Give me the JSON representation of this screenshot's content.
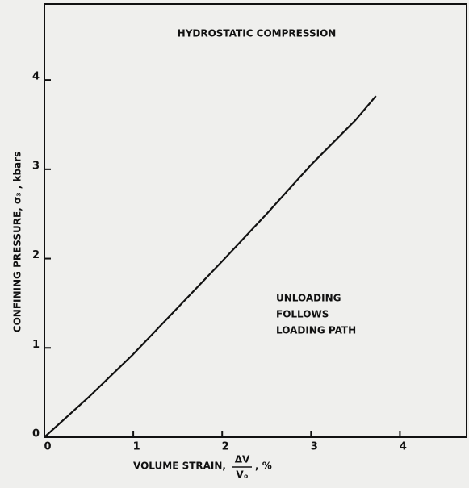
{
  "chart_data": {
    "type": "line",
    "title": "HYDROSTATIC COMPRESSION",
    "xlabel": {
      "text": "VOLUME STRAIN,",
      "numerator": "ΔV",
      "denominator": "Vₒ",
      "unit": ", %"
    },
    "ylabel": "CONFINING PRESSURE, σ₃ , kbars",
    "annotation": [
      "UNLOADING",
      "FOLLOWS",
      "LOADING PATH"
    ],
    "x": [
      0,
      0.5,
      1,
      1.5,
      2,
      2.5,
      3,
      3.3,
      3.5,
      3.73
    ],
    "series": [
      {
        "name": "loading",
        "color": "#111111",
        "values": [
          0,
          0.45,
          0.93,
          1.45,
          1.97,
          2.5,
          3.05,
          3.35,
          3.55,
          3.82
        ]
      }
    ],
    "xlim": [
      0,
      4.75
    ],
    "ylim": [
      0,
      4.85
    ],
    "xticks": [
      0,
      1,
      2,
      3,
      4
    ],
    "yticks": [
      0,
      1,
      2,
      3,
      4
    ],
    "grid": false
  }
}
